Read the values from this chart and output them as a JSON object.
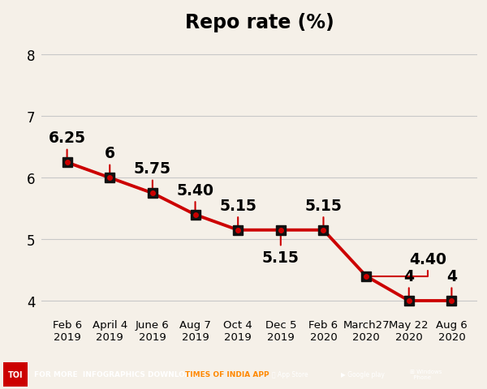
{
  "title": "Repo rate (%)",
  "x_labels": [
    "Feb 6\n2019",
    "April 4\n2019",
    "June 6\n2019",
    "Aug 7\n2019",
    "Oct 4\n2019",
    "Dec 5\n2019",
    "Feb 6\n2020",
    "March27\n2020",
    "May 22\n2020",
    "Aug 6\n2020"
  ],
  "y_values": [
    6.25,
    6.0,
    5.75,
    5.4,
    5.15,
    5.15,
    5.15,
    4.4,
    4.0,
    4.0
  ],
  "annotations": [
    "6.25",
    "6",
    "5.75",
    "5.40",
    "5.15",
    "5.15",
    "5.15",
    "4.40",
    "4",
    "4"
  ],
  "ann_x_offset": [
    0,
    0,
    0,
    0,
    0,
    0,
    0,
    1.0,
    0,
    0
  ],
  "ann_y_offset": [
    0.28,
    0.28,
    0.28,
    0.28,
    0.28,
    -0.32,
    0.28,
    0.28,
    0.28,
    0.28
  ],
  "line_color": "#cc0000",
  "marker_color": "#880000",
  "marker_facecolor": "#cc0000",
  "background_color": "#f5f0e8",
  "grid_color": "#c8c8c8",
  "title_fontsize": 17,
  "label_fontsize": 9.5,
  "annotation_fontsize": 13.5,
  "ytick_fontsize": 12,
  "ylim": [
    3.8,
    8.3
  ],
  "yticks": [
    4,
    5,
    6,
    7,
    8
  ]
}
